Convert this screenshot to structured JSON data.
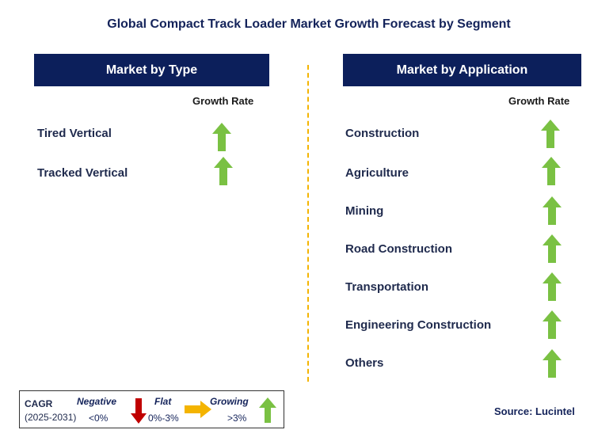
{
  "title": "Global Compact Track Loader Market Growth Forecast by Segment",
  "left_panel": {
    "header": "Market by Type",
    "growth_rate_label": "Growth Rate",
    "items": [
      {
        "label": "Tired Vertical",
        "trend": "growing"
      },
      {
        "label": "Tracked Vertical",
        "trend": "growing"
      }
    ]
  },
  "right_panel": {
    "header": "Market by Application",
    "growth_rate_label": "Growth Rate",
    "items": [
      {
        "label": "Construction",
        "trend": "growing"
      },
      {
        "label": "Agriculture",
        "trend": "growing"
      },
      {
        "label": "Mining",
        "trend": "growing"
      },
      {
        "label": "Road Construction",
        "trend": "growing"
      },
      {
        "label": "Transportation",
        "trend": "growing"
      },
      {
        "label": "Engineering Construction",
        "trend": "growing"
      },
      {
        "label": "Others",
        "trend": "growing"
      }
    ]
  },
  "legend": {
    "cagr_label": "CAGR",
    "period": "(2025-2031)",
    "negative": {
      "label": "Negative",
      "range": "<0%",
      "icon": "red-down-arrow-icon"
    },
    "flat": {
      "label": "Flat",
      "range": "0%-3%",
      "icon": "yellow-right-arrow-icon"
    },
    "growing": {
      "label": "Growing",
      "range": ">3%",
      "icon": "green-up-arrow-icon"
    }
  },
  "source": "Source: Lucintel",
  "colors": {
    "header_bg": "#0c1f5b",
    "growing": "#7ac143",
    "flat": "#f4b400",
    "negative": "#c00000",
    "divider": "#f4b400"
  }
}
